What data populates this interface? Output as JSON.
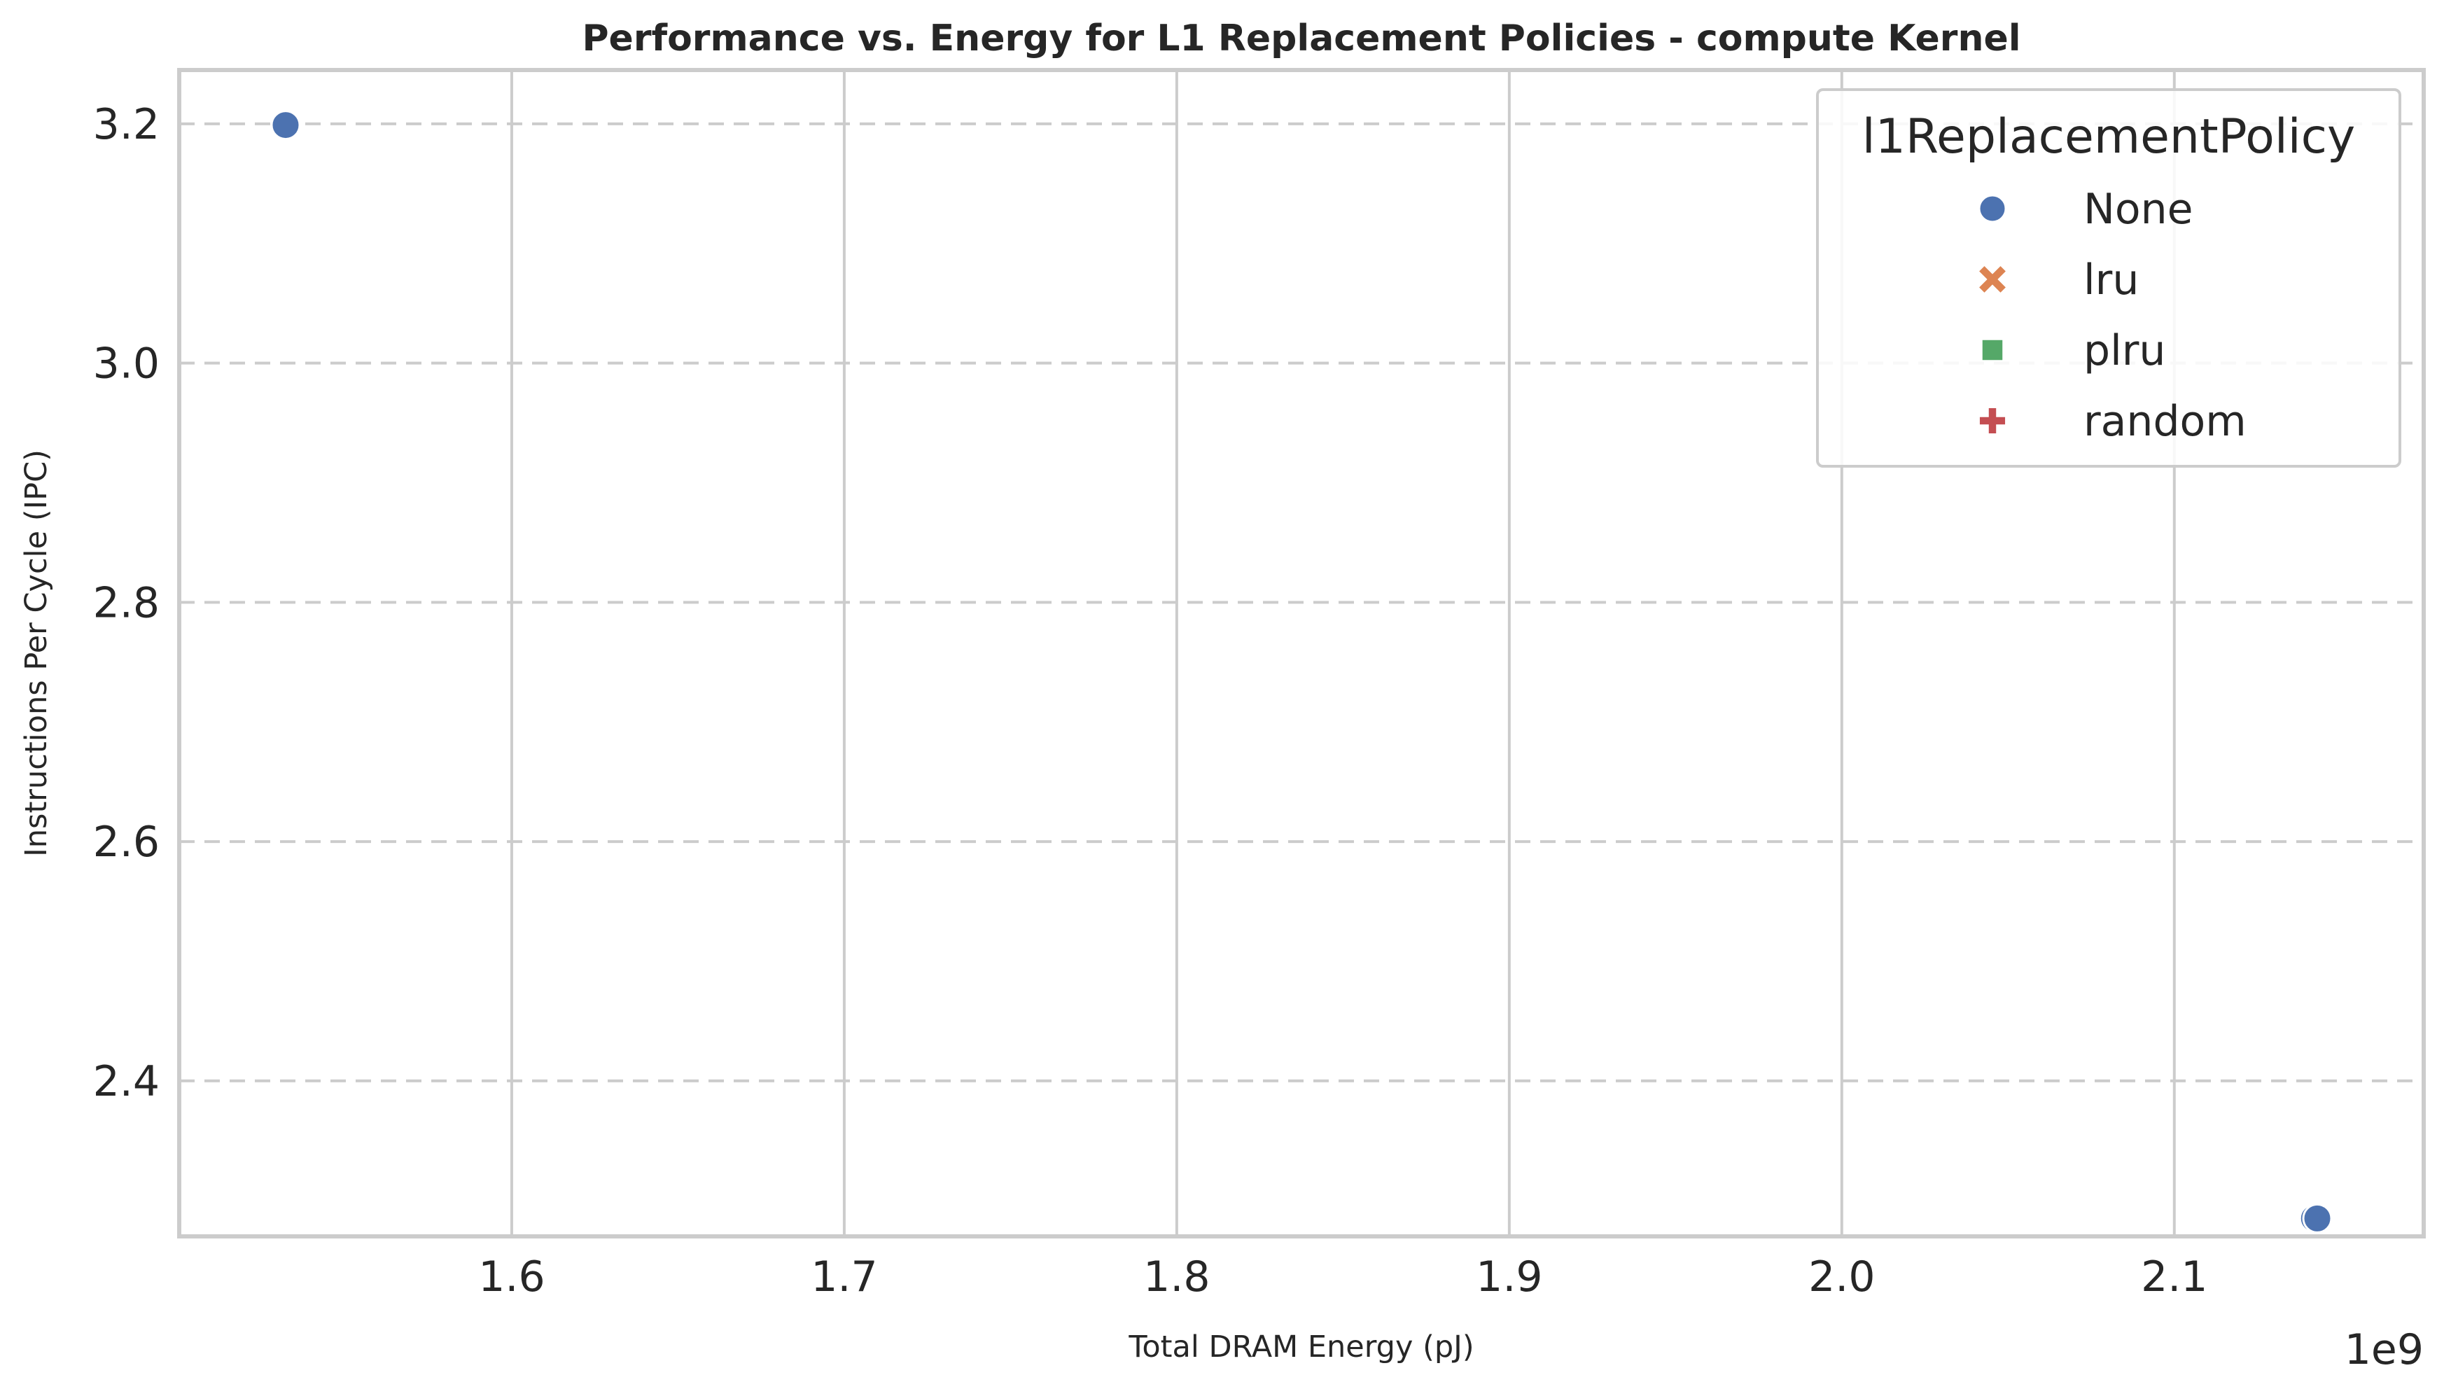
{
  "chart_data": {
    "type": "scatter",
    "title": "Performance vs. Energy for L1 Replacement Policies - compute Kernel",
    "xlabel": "Total DRAM Energy (pJ)",
    "ylabel": "Instructions Per Cycle (IPC)",
    "x_offset_label": "1e9",
    "xlim": [
      1.5,
      2.175
    ],
    "ylim": [
      2.27,
      3.245
    ],
    "x_ticks": [
      1.6,
      1.7,
      1.8,
      1.9,
      2.0,
      2.1
    ],
    "x_tick_labels": [
      "1.6",
      "1.7",
      "1.8",
      "1.9",
      "2.0",
      "2.1"
    ],
    "y_ticks": [
      2.4,
      2.6,
      2.8,
      3.0,
      3.2
    ],
    "y_tick_labels": [
      "2.4",
      "2.6",
      "2.8",
      "3.0",
      "3.2"
    ],
    "grid": true,
    "legend": {
      "title": "l1ReplacementPolicy",
      "placement": "top-right",
      "entries": [
        {
          "label": "None",
          "marker": "circle",
          "color": "#4c72b0"
        },
        {
          "label": "lru",
          "marker": "x",
          "color": "#dd8452"
        },
        {
          "label": "plru",
          "marker": "square",
          "color": "#55a868"
        },
        {
          "label": "random",
          "marker": "plus",
          "color": "#c44e52"
        }
      ]
    },
    "series": [
      {
        "name": "None",
        "marker": "circle",
        "color": "#4c72b0",
        "x": [
          1.532,
          2.142,
          2.143
        ],
        "y": [
          3.199,
          2.285,
          2.285
        ]
      },
      {
        "name": "lru",
        "marker": "x",
        "color": "#dd8452",
        "x": [],
        "y": []
      },
      {
        "name": "plru",
        "marker": "square",
        "color": "#55a868",
        "x": [],
        "y": []
      },
      {
        "name": "random",
        "marker": "plus",
        "color": "#c44e52",
        "x": [],
        "y": []
      }
    ]
  }
}
